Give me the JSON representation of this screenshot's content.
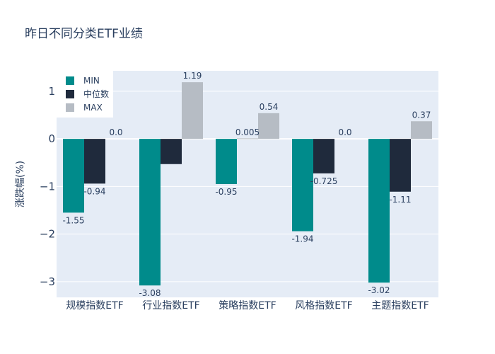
{
  "chart_data": {
    "type": "bar",
    "title": "昨日不同分类ETF业绩",
    "ylabel": "涨跌幅(%)",
    "categories": [
      "规模指数ETF",
      "行业指数ETF",
      "策略指数ETF",
      "风格指数ETF",
      "主题指数ETF"
    ],
    "series": [
      {
        "name": "MIN",
        "color": "#008b8b",
        "values": [
          -1.55,
          -3.08,
          -0.95,
          -1.94,
          -3.02
        ],
        "labels": [
          "-1.55",
          "-3.08",
          "-0.95",
          "-1.94",
          "-3.02"
        ]
      },
      {
        "name": "中位数",
        "color": "#1f2a3c",
        "values": [
          -0.94,
          -0.53,
          0.005,
          -0.725,
          -1.11
        ],
        "labels": [
          "-0.94",
          "",
          "0.005",
          "-0.725",
          "-1.11"
        ]
      },
      {
        "name": "MAX",
        "color": "#b6bcc4",
        "values": [
          0.0,
          1.19,
          0.54,
          0.0,
          0.37
        ],
        "labels": [
          "0.0",
          "1.19",
          "0.54",
          "0.0",
          "0.37"
        ]
      }
    ],
    "yticks": [
      1,
      0,
      -1,
      -2,
      -3
    ],
    "ytick_labels": [
      "1",
      "0",
      "−1",
      "−2",
      "−3"
    ],
    "ylim": [
      -3.33,
      1.43
    ],
    "legend_position": "top-left",
    "grid": true,
    "background": "#e5ecf6"
  }
}
